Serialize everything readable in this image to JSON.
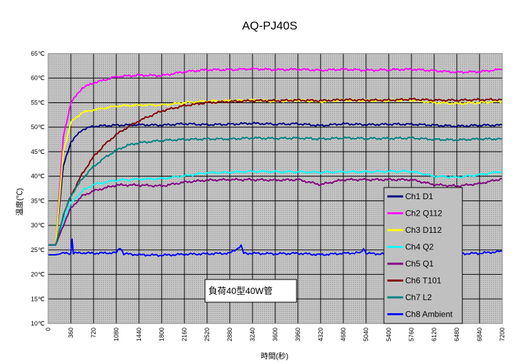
{
  "chart_data": {
    "type": "line",
    "title": "AQ-PJ40S",
    "xlabel": "時間(秒)",
    "ylabel": "温度(℃)",
    "xlim": [
      0,
      7200
    ],
    "ylim": [
      10,
      65
    ],
    "x_ticks": [
      "0",
      "360",
      "720",
      "1080",
      "1440",
      "1800",
      "2160",
      "2520",
      "2880",
      "3240",
      "3600",
      "3960",
      "4320",
      "4680",
      "5040",
      "5400",
      "5760",
      "6120",
      "6480",
      "6840",
      "7200"
    ],
    "y_ticks": [
      "10℃",
      "15℃",
      "20℃",
      "25℃",
      "30℃",
      "35℃",
      "40℃",
      "45℃",
      "50℃",
      "55℃",
      "60℃",
      "65℃"
    ],
    "grid": true,
    "legend_position": "right",
    "annotation": "負荷40型40W管",
    "series": [
      {
        "name": "Ch1  D1",
        "color": "#000080",
        "points": [
          [
            0,
            26
          ],
          [
            120,
            26
          ],
          [
            240,
            42
          ],
          [
            360,
            47
          ],
          [
            540,
            49.5
          ],
          [
            720,
            50.2
          ],
          [
            1080,
            50.4
          ],
          [
            1440,
            50.5
          ],
          [
            1800,
            50.4
          ],
          [
            2160,
            50.7
          ],
          [
            2520,
            50.5
          ],
          [
            2880,
            50.6
          ],
          [
            3240,
            50.8
          ],
          [
            3600,
            50.6
          ],
          [
            3960,
            50.7
          ],
          [
            4320,
            50.3
          ],
          [
            4680,
            50.7
          ],
          [
            5040,
            50.5
          ],
          [
            5400,
            50.6
          ],
          [
            5760,
            50.6
          ],
          [
            6120,
            50.4
          ],
          [
            6480,
            50.2
          ],
          [
            6840,
            50.4
          ],
          [
            7200,
            50.4
          ]
        ]
      },
      {
        "name": "Ch2  Q112",
        "color": "#ff00ff",
        "points": [
          [
            0,
            26
          ],
          [
            120,
            26
          ],
          [
            240,
            48
          ],
          [
            360,
            55
          ],
          [
            540,
            58
          ],
          [
            720,
            59
          ],
          [
            1080,
            60.3
          ],
          [
            1440,
            60.6
          ],
          [
            1800,
            60.5
          ],
          [
            2160,
            61.3
          ],
          [
            2520,
            61.7
          ],
          [
            2880,
            61.7
          ],
          [
            3240,
            61.9
          ],
          [
            3600,
            61.7
          ],
          [
            3960,
            61.8
          ],
          [
            4320,
            61.6
          ],
          [
            4680,
            61.8
          ],
          [
            5040,
            61.6
          ],
          [
            5400,
            61.7
          ],
          [
            5760,
            61.8
          ],
          [
            6120,
            61.5
          ],
          [
            6480,
            61.2
          ],
          [
            6840,
            61.3
          ],
          [
            7200,
            61.8
          ]
        ]
      },
      {
        "name": "Ch3  D112",
        "color": "#ffff00",
        "points": [
          [
            0,
            26
          ],
          [
            120,
            26
          ],
          [
            240,
            45
          ],
          [
            360,
            51
          ],
          [
            540,
            53
          ],
          [
            720,
            53.5
          ],
          [
            1080,
            54.3
          ],
          [
            1440,
            54.5
          ],
          [
            1800,
            54.5
          ],
          [
            2160,
            55
          ],
          [
            2520,
            55.3
          ],
          [
            2880,
            55.4
          ],
          [
            3240,
            55.5
          ],
          [
            3600,
            55.3
          ],
          [
            3960,
            55.5
          ],
          [
            4320,
            55.2
          ],
          [
            4680,
            55.5
          ],
          [
            5040,
            55.4
          ],
          [
            5400,
            55.4
          ],
          [
            5760,
            55.5
          ],
          [
            6120,
            55
          ],
          [
            6480,
            54.8
          ],
          [
            6840,
            55
          ],
          [
            7200,
            55.3
          ]
        ]
      },
      {
        "name": "Ch4  Q2",
        "color": "#00ffff",
        "points": [
          [
            0,
            26
          ],
          [
            120,
            26
          ],
          [
            240,
            31
          ],
          [
            360,
            34.5
          ],
          [
            540,
            37
          ],
          [
            720,
            38.3
          ],
          [
            1080,
            39.2
          ],
          [
            1440,
            39.4
          ],
          [
            1800,
            39.5
          ],
          [
            2160,
            40.1
          ],
          [
            2520,
            40.7
          ],
          [
            2880,
            40.8
          ],
          [
            3240,
            41
          ],
          [
            3600,
            40.9
          ],
          [
            3960,
            40.9
          ],
          [
            4320,
            40.8
          ],
          [
            4680,
            40.9
          ],
          [
            5040,
            40.9
          ],
          [
            5400,
            41
          ],
          [
            5760,
            41
          ],
          [
            6120,
            40
          ],
          [
            6480,
            39.8
          ],
          [
            6840,
            40.3
          ],
          [
            7200,
            41
          ]
        ]
      },
      {
        "name": "Ch5  Q1",
        "color": "#800080",
        "points": [
          [
            0,
            26
          ],
          [
            120,
            26
          ],
          [
            240,
            30
          ],
          [
            360,
            33.5
          ],
          [
            540,
            36
          ],
          [
            720,
            37
          ],
          [
            1080,
            38.2
          ],
          [
            1440,
            38.2
          ],
          [
            1800,
            38
          ],
          [
            2160,
            38.8
          ],
          [
            2520,
            39.2
          ],
          [
            2880,
            39.3
          ],
          [
            3240,
            39.3
          ],
          [
            3600,
            39.2
          ],
          [
            3960,
            39.3
          ],
          [
            4320,
            38.3
          ],
          [
            4680,
            39.3
          ],
          [
            5040,
            39.3
          ],
          [
            5400,
            39.3
          ],
          [
            5760,
            39.3
          ],
          [
            6120,
            38.3
          ],
          [
            6480,
            38
          ],
          [
            6840,
            38.5
          ],
          [
            7200,
            39.5
          ]
        ]
      },
      {
        "name": "Ch6  T101",
        "color": "#800000",
        "points": [
          [
            0,
            26
          ],
          [
            120,
            26
          ],
          [
            240,
            32
          ],
          [
            360,
            36
          ],
          [
            540,
            40.5
          ],
          [
            720,
            44
          ],
          [
            900,
            46.5
          ],
          [
            1080,
            48.5
          ],
          [
            1260,
            50
          ],
          [
            1440,
            51.3
          ],
          [
            1800,
            53.3
          ],
          [
            2160,
            54.4
          ],
          [
            2520,
            55
          ],
          [
            2880,
            55.2
          ],
          [
            3240,
            55.4
          ],
          [
            3600,
            55.4
          ],
          [
            3960,
            55.5
          ],
          [
            4320,
            55.4
          ],
          [
            4680,
            55.6
          ],
          [
            5040,
            55.5
          ],
          [
            5400,
            55.5
          ],
          [
            5760,
            55.7
          ],
          [
            6120,
            55.5
          ],
          [
            6480,
            55.5
          ],
          [
            6840,
            55.6
          ],
          [
            7200,
            55.6
          ]
        ]
      },
      {
        "name": "Ch7  L2",
        "color": "#008080",
        "points": [
          [
            0,
            26
          ],
          [
            120,
            26
          ],
          [
            240,
            32
          ],
          [
            360,
            36
          ],
          [
            540,
            39.5
          ],
          [
            720,
            42
          ],
          [
            900,
            43.8
          ],
          [
            1080,
            45.3
          ],
          [
            1260,
            46.3
          ],
          [
            1440,
            46.8
          ],
          [
            1800,
            47.3
          ],
          [
            2160,
            47.5
          ],
          [
            2520,
            47.6
          ],
          [
            2880,
            47.6
          ],
          [
            3240,
            47.8
          ],
          [
            3600,
            47.7
          ],
          [
            3960,
            47.8
          ],
          [
            4320,
            47.6
          ],
          [
            4680,
            47.8
          ],
          [
            5040,
            47.7
          ],
          [
            5400,
            47.7
          ],
          [
            5760,
            47.8
          ],
          [
            6120,
            47.5
          ],
          [
            6480,
            47.4
          ],
          [
            6840,
            47.6
          ],
          [
            7200,
            47.6
          ]
        ]
      },
      {
        "name": "Ch8  Ambient",
        "color": "#0000ff",
        "points": [
          [
            0,
            24
          ],
          [
            120,
            24
          ],
          [
            240,
            24.3
          ],
          [
            360,
            24.3
          ],
          [
            380,
            27.3
          ],
          [
            400,
            24.3
          ],
          [
            540,
            24.4
          ],
          [
            720,
            24.3
          ],
          [
            1080,
            24.4
          ],
          [
            1140,
            25.5
          ],
          [
            1200,
            24.2
          ],
          [
            1440,
            24
          ],
          [
            1800,
            23.9
          ],
          [
            2160,
            24.1
          ],
          [
            2520,
            24.2
          ],
          [
            2880,
            24.3
          ],
          [
            3060,
            25.8
          ],
          [
            3100,
            24.3
          ],
          [
            3240,
            24.3
          ],
          [
            3600,
            24.2
          ],
          [
            3960,
            24.3
          ],
          [
            4320,
            24
          ],
          [
            4680,
            24.3
          ],
          [
            4960,
            24.4
          ],
          [
            5000,
            25.4
          ],
          [
            5040,
            24.3
          ],
          [
            5400,
            24.1
          ],
          [
            5760,
            24.3
          ],
          [
            6120,
            24.4
          ],
          [
            6480,
            24.2
          ],
          [
            6840,
            24.3
          ],
          [
            7200,
            24.7
          ]
        ]
      }
    ]
  }
}
